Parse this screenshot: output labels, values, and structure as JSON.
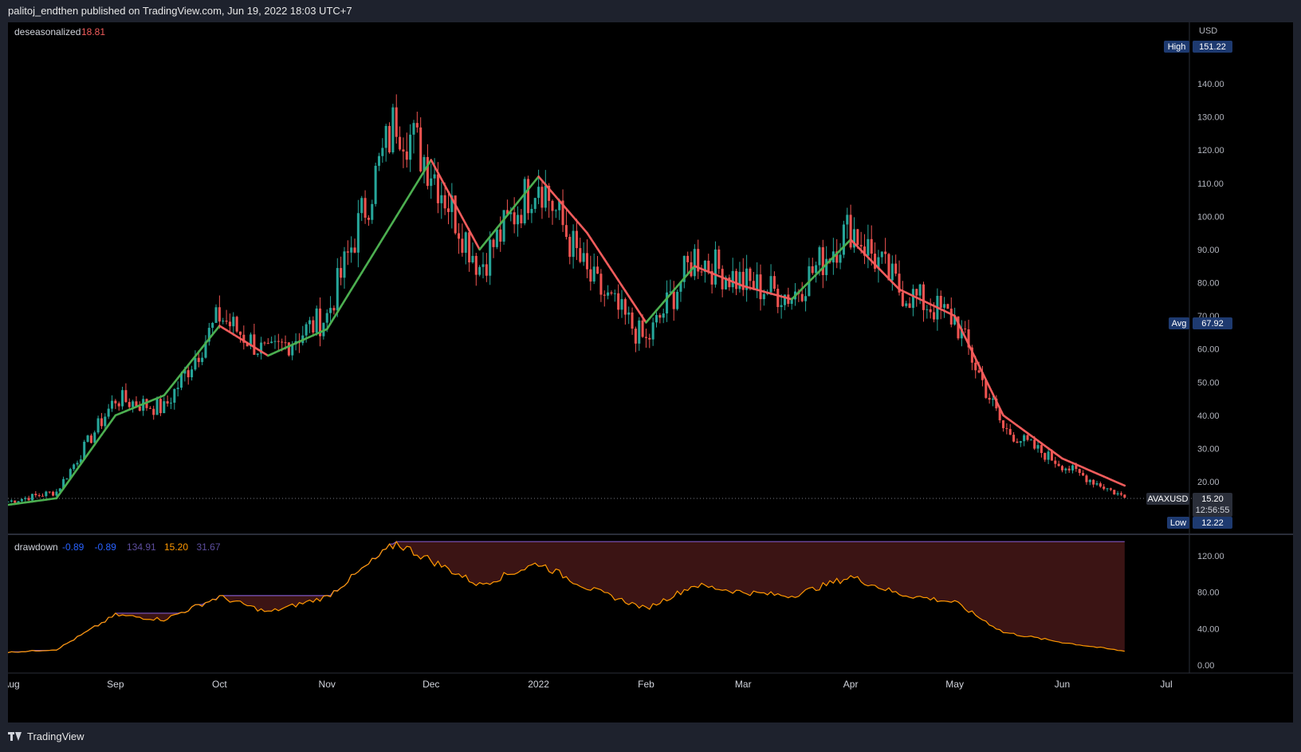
{
  "header": {
    "text": "palitoj_endthen published on TradingView.com, Jun 19, 2022 18:03 UTC+7"
  },
  "footer": {
    "brand": "TradingView"
  },
  "colors": {
    "up": "#26a69a",
    "down": "#ef5350",
    "ma_up": "#4caf50",
    "ma_down": "#f25c5c",
    "drawdown_fill": "#3b1414",
    "drawdown_price": "#ff9800",
    "drawdown_peak": "#7e57c2",
    "label_bg": "#1e3a70"
  },
  "main_pane": {
    "indicator_name": "deseasonalized",
    "indicator_value": "18.81",
    "currency": "USD",
    "high_label": "High",
    "high_value": "151.22",
    "avg_label": "Avg",
    "avg_value": "67.92",
    "low_label": "Low",
    "low_value": "12.22",
    "symbol_label": "AVAXUSD",
    "last_price": "15.20",
    "countdown": "12:56:55",
    "y_ticks": [
      "140.00",
      "130.00",
      "120.00",
      "110.00",
      "100.00",
      "90.00",
      "80.00",
      "70.00",
      "60.00",
      "50.00",
      "40.00",
      "30.00",
      "20.00"
    ]
  },
  "lower_pane": {
    "indicator_name": "drawdown",
    "values": [
      "-0.89",
      "-0.89",
      "134.91",
      "15.20",
      "31.67"
    ],
    "value_colors": [
      "#2962ff",
      "#2962ff",
      "#5d4e9e",
      "#ff9800",
      "#5d4e9e"
    ],
    "y_ticks": [
      "120.00",
      "80.00",
      "40.00",
      "0.00"
    ]
  },
  "x_axis": {
    "labels": [
      "Aug",
      "Sep",
      "Oct",
      "Nov",
      "Dec",
      "2022",
      "Feb",
      "Mar",
      "Apr",
      "May",
      "Jun",
      "Jul"
    ]
  },
  "chart_data": {
    "type": "candlestick",
    "title": "",
    "xlabel": "",
    "ylabel": "USD",
    "ylim": [
      10,
      155
    ],
    "x": [
      "2021-08-01",
      "2021-08-15",
      "2021-09-01",
      "2021-09-15",
      "2021-10-01",
      "2021-10-15",
      "2021-11-01",
      "2021-11-21",
      "2021-12-01",
      "2021-12-15",
      "2022-01-01",
      "2022-01-15",
      "2022-02-01",
      "2022-02-15",
      "2022-03-01",
      "2022-03-15",
      "2022-04-01",
      "2022-04-15",
      "2022-05-01",
      "2022-05-15",
      "2022-06-01",
      "2022-06-19"
    ],
    "close": [
      14,
      17,
      45,
      42,
      70,
      58,
      70,
      130,
      115,
      85,
      112,
      82,
      62,
      88,
      80,
      76,
      97,
      78,
      69,
      36,
      25,
      15.2
    ],
    "series": [
      {
        "name": "deseasonalized",
        "values": [
          13,
          15,
          40,
          46,
          67,
          58,
          66,
          100,
          117,
          90,
          112,
          95,
          68,
          85,
          79,
          75,
          93,
          78,
          70,
          40,
          27,
          18.81
        ]
      },
      {
        "name": "drawdown",
        "values": [
          14,
          17,
          55,
          50,
          75,
          58,
          75,
          134,
          115,
          88,
          112,
          85,
          62,
          88,
          80,
          76,
          97,
          78,
          69,
          36,
          25,
          15.2
        ]
      }
    ]
  }
}
